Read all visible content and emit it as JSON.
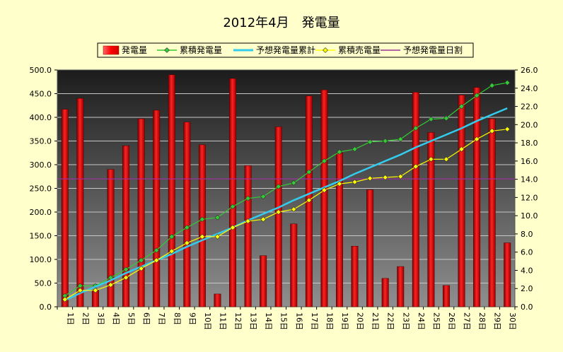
{
  "chart_data": {
    "type": "bar",
    "title": "2012年4月　発電量",
    "categories": [
      "1日",
      "2日",
      "3日",
      "4日",
      "5日",
      "6日",
      "7日",
      "8日",
      "9日",
      "10日",
      "11日",
      "12日",
      "13日",
      "14日",
      "15日",
      "16日",
      "17日",
      "18日",
      "19日",
      "20日",
      "21日",
      "22日",
      "23日",
      "24日",
      "25日",
      "26日",
      "27日",
      "28日",
      "29日",
      "30日"
    ],
    "y_left": {
      "ylim": [
        0,
        500
      ],
      "ticks": [
        "0.0",
        "50.0",
        "100.0",
        "150.0",
        "200.0",
        "250.0",
        "300.0",
        "350.0",
        "400.0",
        "450.0",
        "500.0"
      ]
    },
    "y_right": {
      "ylim": [
        0,
        26
      ],
      "ticks": [
        "0.0",
        "2.0",
        "4.0",
        "6.0",
        "8.0",
        "10.0",
        "12.0",
        "14.0",
        "16.0",
        "18.0",
        "20.0",
        "22.0",
        "24.0",
        "26.0"
      ]
    },
    "series": [
      {
        "name": "発電量",
        "type": "bar",
        "axis": "left",
        "color": "#ff0000",
        "values": [
          417,
          440,
          35,
          290,
          340,
          397,
          415,
          490,
          390,
          342,
          27,
          482,
          298,
          108,
          380,
          175,
          445,
          458,
          325,
          128,
          247,
          60,
          85,
          453,
          368,
          45,
          447,
          463,
          397,
          135
        ]
      },
      {
        "name": "累積発電量",
        "type": "line",
        "axis": "right",
        "color": "#33cc33",
        "marker": "diamond",
        "values": [
          1.2,
          2.3,
          2.3,
          3.2,
          4.1,
          5.1,
          6.2,
          7.7,
          8.7,
          9.6,
          9.8,
          11.0,
          11.9,
          12.1,
          13.2,
          13.6,
          14.8,
          16.0,
          17.0,
          17.3,
          18.1,
          18.2,
          18.4,
          19.6,
          20.6,
          20.7,
          22.0,
          23.2,
          24.3,
          24.6
        ]
      },
      {
        "name": "予想発電量累計",
        "type": "line",
        "axis": "right",
        "color": "#33ccee",
        "values": [
          0.7,
          1.5,
          2.2,
          2.9,
          3.7,
          4.4,
          5.1,
          5.8,
          6.6,
          7.3,
          8.0,
          8.7,
          9.5,
          10.2,
          10.9,
          11.7,
          12.4,
          13.1,
          13.8,
          14.6,
          15.3,
          16.0,
          16.7,
          17.5,
          18.2,
          18.9,
          19.6,
          20.4,
          21.1,
          21.8
        ]
      },
      {
        "name": "累積売電量",
        "type": "line",
        "axis": "right",
        "color": "#ffff00",
        "marker": "diamond",
        "values": [
          0.8,
          1.8,
          1.8,
          2.4,
          3.2,
          4.2,
          5.1,
          6.1,
          7.0,
          7.7,
          7.7,
          8.7,
          9.4,
          9.6,
          10.4,
          10.7,
          11.7,
          12.8,
          13.5,
          13.7,
          14.1,
          14.2,
          14.3,
          15.4,
          16.2,
          16.2,
          17.3,
          18.4,
          19.3,
          19.5
        ]
      },
      {
        "name": "予想発電量日割",
        "type": "hline",
        "axis": "left",
        "color": "#993399",
        "value": 270
      }
    ],
    "grid": true,
    "legend": "top-center",
    "colors": {
      "background": "#ffffcc",
      "plot_background_top": "#1c1c1c",
      "plot_background_bottom": "#8f8f8f",
      "grid": "#c8c8c8"
    }
  }
}
